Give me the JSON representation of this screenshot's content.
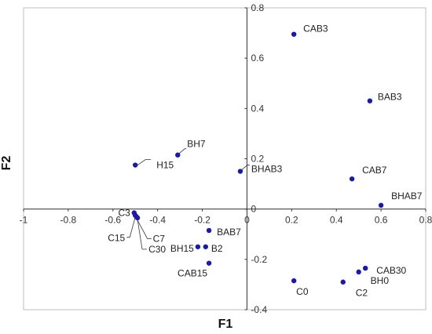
{
  "chart_data": {
    "type": "scatter",
    "title": "",
    "xlabel": "F1",
    "ylabel": "F2",
    "xlim": [
      -1,
      0.8
    ],
    "ylim": [
      -0.4,
      0.8
    ],
    "x_ticks": [
      -1,
      -0.8,
      -0.6,
      -0.4,
      -0.2,
      0,
      0.2,
      0.4,
      0.6,
      0.8
    ],
    "x_tick_labels": [
      "-1",
      "-0.8",
      "-0.6",
      "-0.4",
      "-0.2",
      "0",
      "0.2",
      "0.4",
      "0.6",
      "0.8"
    ],
    "y_ticks": [
      -0.4,
      -0.2,
      0,
      0.2,
      0.4,
      0.6,
      0.8
    ],
    "y_tick_labels": [
      "-0.4",
      "-0.2",
      "0",
      "0.2",
      "0.4",
      "0.6",
      "0.8"
    ],
    "grid": false,
    "marker_color": "#1a1aa6",
    "points": [
      {
        "label": "CAB3",
        "x": 0.21,
        "y": 0.695
      },
      {
        "label": "BAB3",
        "x": 0.55,
        "y": 0.43
      },
      {
        "label": "BH7",
        "x": -0.31,
        "y": 0.215
      },
      {
        "label": "H15",
        "x": -0.5,
        "y": 0.175
      },
      {
        "label": "BHAB3",
        "x": -0.03,
        "y": 0.15
      },
      {
        "label": "CAB7",
        "x": 0.47,
        "y": 0.12
      },
      {
        "label": "BHAB7",
        "x": 0.6,
        "y": 0.015
      },
      {
        "label": "C3",
        "x": -0.505,
        "y": -0.015
      },
      {
        "label": "C15",
        "x": -0.5,
        "y": -0.025
      },
      {
        "label": "C7",
        "x": -0.495,
        "y": -0.03
      },
      {
        "label": "C30",
        "x": -0.49,
        "y": -0.035
      },
      {
        "label": "BAB7",
        "x": -0.17,
        "y": -0.085
      },
      {
        "label": "BH15",
        "x": -0.22,
        "y": -0.15
      },
      {
        "label": "B2",
        "x": -0.185,
        "y": -0.15
      },
      {
        "label": "CAB15",
        "x": -0.17,
        "y": -0.215
      },
      {
        "label": "C0",
        "x": 0.21,
        "y": -0.285
      },
      {
        "label": "C2",
        "x": 0.43,
        "y": -0.29
      },
      {
        "label": "BH0",
        "x": 0.5,
        "y": -0.25
      },
      {
        "label": "CAB30",
        "x": 0.53,
        "y": -0.235
      }
    ]
  }
}
